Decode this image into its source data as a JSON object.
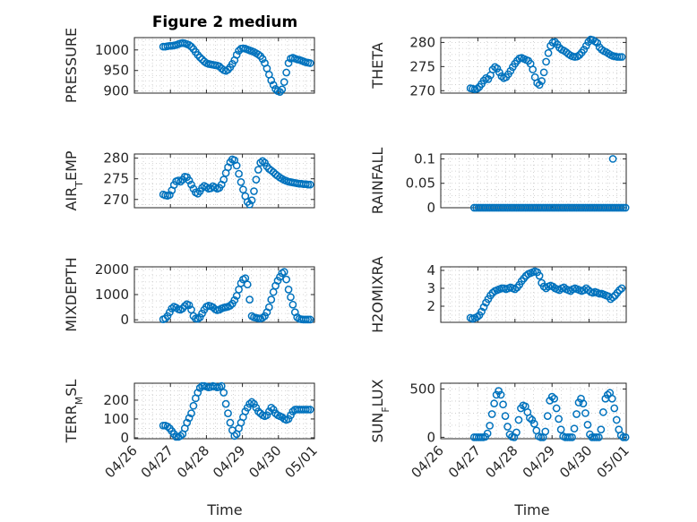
{
  "figure": {
    "title": "Figure 2 medium"
  },
  "colors": {
    "marker": "#0072BD",
    "axis": "#262626",
    "grid": "#c8c8c8",
    "background": "#ffffff"
  },
  "shared_x": {
    "label": "Time",
    "tick_labels": [
      "04/26",
      "04/27",
      "04/28",
      "04/29",
      "04/30",
      "05/01"
    ],
    "tick_values": [
      0,
      1,
      2,
      3,
      4,
      5
    ],
    "range": [
      0,
      5
    ],
    "start_date": "04/26"
  },
  "chart_data": [
    {
      "type": "scatter",
      "ylabel": "PRESSURE",
      "ylim": [
        895,
        1030
      ],
      "yticks": [
        900,
        950,
        1000
      ],
      "ytick_labels": [
        "900",
        "950",
        "1000"
      ],
      "grid": true,
      "x": [
        0.8,
        0.86,
        0.92,
        0.98,
        1.04,
        1.1,
        1.16,
        1.22,
        1.28,
        1.34,
        1.4,
        1.46,
        1.52,
        1.58,
        1.64,
        1.7,
        1.76,
        1.82,
        1.88,
        1.94,
        2.0,
        2.06,
        2.12,
        2.18,
        2.24,
        2.3,
        2.36,
        2.42,
        2.48,
        2.54,
        2.6,
        2.66,
        2.72,
        2.78,
        2.84,
        2.9,
        2.96,
        3.02,
        3.08,
        3.14,
        3.2,
        3.26,
        3.32,
        3.38,
        3.44,
        3.5,
        3.56,
        3.62,
        3.68,
        3.74,
        3.8,
        3.86,
        3.92,
        3.98,
        4.04,
        4.1,
        4.16,
        4.22,
        4.28,
        4.34,
        4.4,
        4.46,
        4.52,
        4.58,
        4.64,
        4.7,
        4.76,
        4.82,
        4.88
      ],
      "y": [
        1008,
        1008,
        1009,
        1010,
        1010,
        1011,
        1012,
        1014,
        1016,
        1017,
        1016,
        1014,
        1012,
        1008,
        1002,
        995,
        988,
        982,
        977,
        972,
        968,
        966,
        965,
        964,
        963,
        962,
        960,
        955,
        951,
        949,
        952,
        958,
        966,
        975,
        988,
        998,
        1003,
        1004,
        1003,
        1001,
        999,
        997,
        995,
        992,
        989,
        985,
        978,
        968,
        955,
        940,
        926,
        915,
        905,
        900,
        898,
        904,
        922,
        945,
        968,
        979,
        981,
        979,
        977,
        976,
        974,
        972,
        970,
        969,
        968
      ]
    },
    {
      "type": "scatter",
      "ylabel": "THETA",
      "ylim": [
        269.5,
        281
      ],
      "yticks": [
        270,
        275,
        280
      ],
      "ytick_labels": [
        "270",
        "275",
        "280"
      ],
      "grid": true,
      "x": [
        0.8,
        0.86,
        0.92,
        0.98,
        1.04,
        1.1,
        1.16,
        1.22,
        1.28,
        1.34,
        1.4,
        1.46,
        1.52,
        1.58,
        1.64,
        1.7,
        1.76,
        1.82,
        1.88,
        1.94,
        2.0,
        2.06,
        2.12,
        2.18,
        2.24,
        2.3,
        2.36,
        2.42,
        2.48,
        2.54,
        2.6,
        2.66,
        2.72,
        2.78,
        2.84,
        2.9,
        2.96,
        3.02,
        3.08,
        3.14,
        3.2,
        3.26,
        3.32,
        3.38,
        3.44,
        3.5,
        3.56,
        3.62,
        3.68,
        3.74,
        3.8,
        3.86,
        3.92,
        3.98,
        4.04,
        4.1,
        4.16,
        4.22,
        4.28,
        4.34,
        4.4,
        4.46,
        4.52,
        4.58,
        4.64,
        4.7,
        4.76,
        4.82,
        4.88
      ],
      "y": [
        270.5,
        270.4,
        270.3,
        270.4,
        270.8,
        271.4,
        272.1,
        272.6,
        272.4,
        273.2,
        274.4,
        274.9,
        274.6,
        273.8,
        273.0,
        272.6,
        272.8,
        273.4,
        274.1,
        274.9,
        275.6,
        276.2,
        276.7,
        276.8,
        276.6,
        276.4,
        276.2,
        275.6,
        274.4,
        272.8,
        271.6,
        271.2,
        272.0,
        273.8,
        276.0,
        277.8,
        279.3,
        280.0,
        280.1,
        279.6,
        278.9,
        278.5,
        278.3,
        278.0,
        277.6,
        277.3,
        277.1,
        277.0,
        277.1,
        277.4,
        277.9,
        278.5,
        279.3,
        280.1,
        280.6,
        280.5,
        280.2,
        279.9,
        279.0,
        278.5,
        278.2,
        278.0,
        277.7,
        277.4,
        277.2,
        277.1,
        277.0,
        277.0,
        277.0
      ]
    },
    {
      "type": "scatter",
      "ylabel": "AIR_TEMP",
      "ylim": [
        268,
        281
      ],
      "yticks": [
        270,
        275,
        280
      ],
      "ytick_labels": [
        "270",
        "275",
        "280"
      ],
      "grid": true,
      "x": [
        0.8,
        0.86,
        0.92,
        0.98,
        1.04,
        1.1,
        1.16,
        1.22,
        1.28,
        1.34,
        1.4,
        1.46,
        1.52,
        1.58,
        1.64,
        1.7,
        1.76,
        1.82,
        1.88,
        1.94,
        2.0,
        2.06,
        2.12,
        2.18,
        2.24,
        2.3,
        2.36,
        2.42,
        2.48,
        2.54,
        2.6,
        2.66,
        2.72,
        2.78,
        2.84,
        2.9,
        2.96,
        3.02,
        3.08,
        3.14,
        3.2,
        3.26,
        3.32,
        3.38,
        3.44,
        3.5,
        3.56,
        3.62,
        3.68,
        3.74,
        3.8,
        3.86,
        3.92,
        3.98,
        4.04,
        4.1,
        4.16,
        4.22,
        4.28,
        4.34,
        4.4,
        4.46,
        4.52,
        4.58,
        4.64,
        4.7,
        4.76,
        4.82,
        4.88
      ],
      "y": [
        271.2,
        271.0,
        270.9,
        271.1,
        272.2,
        273.5,
        274.4,
        274.6,
        274.3,
        274.8,
        275.5,
        275.4,
        274.6,
        273.6,
        272.6,
        271.7,
        271.4,
        272.0,
        272.8,
        273.3,
        273.0,
        272.6,
        272.7,
        273.2,
        272.9,
        272.6,
        272.8,
        273.6,
        274.8,
        276.4,
        277.8,
        279.0,
        279.7,
        279.5,
        278.2,
        276.2,
        274.2,
        272.4,
        270.8,
        269.4,
        268.8,
        269.8,
        272.0,
        274.8,
        277.2,
        278.9,
        279.3,
        278.9,
        278.0,
        277.4,
        277.0,
        276.6,
        276.1,
        275.7,
        275.3,
        275.0,
        274.7,
        274.5,
        274.3,
        274.2,
        274.1,
        274.0,
        273.9,
        273.8,
        273.8,
        273.7,
        273.7,
        273.6,
        273.6
      ]
    },
    {
      "type": "scatter",
      "ylabel": "RAINFALL",
      "ylim": [
        0,
        0.11
      ],
      "yticks": [
        0,
        0.05,
        0.1
      ],
      "ytick_labels": [
        "0",
        "0.05",
        "0.1"
      ],
      "grid": true,
      "x": [
        0.9,
        0.96,
        1.02,
        1.08,
        1.14,
        1.2,
        1.26,
        1.32,
        1.38,
        1.44,
        1.5,
        1.56,
        1.62,
        1.68,
        1.74,
        1.8,
        1.86,
        1.92,
        1.98,
        2.04,
        2.1,
        2.16,
        2.22,
        2.28,
        2.34,
        2.4,
        2.46,
        2.52,
        2.58,
        2.64,
        2.7,
        2.76,
        2.82,
        2.88,
        2.94,
        3.0,
        3.06,
        3.12,
        3.18,
        3.24,
        3.3,
        3.36,
        3.42,
        3.48,
        3.54,
        3.6,
        3.66,
        3.72,
        3.78,
        3.84,
        3.9,
        3.96,
        4.02,
        4.08,
        4.14,
        4.2,
        4.26,
        4.32,
        4.38,
        4.44,
        4.5,
        4.56,
        4.62,
        4.68,
        4.74,
        4.8,
        4.86,
        4.92,
        4.98,
        4.64
      ],
      "y": [
        0,
        0,
        0,
        0,
        0,
        0,
        0,
        0,
        0,
        0,
        0,
        0,
        0,
        0,
        0,
        0,
        0,
        0,
        0,
        0,
        0,
        0,
        0,
        0,
        0,
        0,
        0,
        0,
        0,
        0,
        0,
        0,
        0,
        0,
        0,
        0,
        0,
        0,
        0,
        0,
        0,
        0,
        0,
        0,
        0,
        0,
        0,
        0,
        0,
        0,
        0,
        0,
        0,
        0,
        0,
        0,
        0,
        0,
        0,
        0,
        0,
        0,
        0,
        0,
        0,
        0,
        0,
        0,
        0,
        0.1
      ]
    },
    {
      "type": "scatter",
      "ylabel": "MIXDEPTH",
      "ylim": [
        -100,
        2100
      ],
      "yticks": [
        0,
        1000,
        2000
      ],
      "ytick_labels": [
        "0",
        "1000",
        "2000"
      ],
      "grid": true,
      "x": [
        0.8,
        0.86,
        0.92,
        0.98,
        1.04,
        1.1,
        1.16,
        1.22,
        1.28,
        1.34,
        1.4,
        1.46,
        1.52,
        1.58,
        1.64,
        1.7,
        1.76,
        1.82,
        1.88,
        1.94,
        2.0,
        2.06,
        2.12,
        2.18,
        2.24,
        2.3,
        2.36,
        2.42,
        2.48,
        2.54,
        2.6,
        2.66,
        2.72,
        2.78,
        2.84,
        2.9,
        2.96,
        3.02,
        3.08,
        3.14,
        3.2,
        3.26,
        3.32,
        3.38,
        3.44,
        3.5,
        3.56,
        3.62,
        3.68,
        3.74,
        3.8,
        3.86,
        3.92,
        3.98,
        4.04,
        4.1,
        4.16,
        4.22,
        4.28,
        4.34,
        4.4,
        4.46,
        4.52,
        4.58,
        4.64,
        4.7,
        4.76,
        4.82,
        4.88
      ],
      "y": [
        20,
        50,
        150,
        300,
        450,
        520,
        480,
        420,
        400,
        450,
        550,
        620,
        580,
        400,
        150,
        50,
        40,
        100,
        250,
        400,
        520,
        560,
        540,
        500,
        420,
        380,
        400,
        450,
        480,
        500,
        520,
        560,
        640,
        780,
        950,
        1200,
        1450,
        1600,
        1650,
        1400,
        800,
        150,
        100,
        80,
        60,
        50,
        80,
        150,
        300,
        500,
        800,
        1100,
        1350,
        1550,
        1700,
        1850,
        1900,
        1600,
        1200,
        900,
        600,
        300,
        100,
        40,
        20,
        10,
        10,
        10,
        10
      ]
    },
    {
      "type": "scatter",
      "ylabel": "H2OMIXRA",
      "ylim": [
        1.1,
        4.2
      ],
      "yticks": [
        2,
        3,
        4
      ],
      "ytick_labels": [
        "2",
        "3",
        "4"
      ],
      "grid": true,
      "x": [
        0.8,
        0.86,
        0.92,
        0.98,
        1.04,
        1.1,
        1.16,
        1.22,
        1.28,
        1.34,
        1.4,
        1.46,
        1.52,
        1.58,
        1.64,
        1.7,
        1.76,
        1.82,
        1.88,
        1.94,
        2.0,
        2.06,
        2.12,
        2.18,
        2.24,
        2.3,
        2.36,
        2.42,
        2.48,
        2.54,
        2.6,
        2.66,
        2.72,
        2.78,
        2.84,
        2.9,
        2.96,
        3.02,
        3.08,
        3.14,
        3.2,
        3.26,
        3.32,
        3.38,
        3.44,
        3.5,
        3.56,
        3.62,
        3.68,
        3.74,
        3.8,
        3.86,
        3.92,
        3.98,
        4.04,
        4.1,
        4.16,
        4.22,
        4.28,
        4.34,
        4.4,
        4.46,
        4.52,
        4.58,
        4.64,
        4.7,
        4.76,
        4.82,
        4.88
      ],
      "y": [
        1.35,
        1.3,
        1.35,
        1.4,
        1.5,
        1.7,
        1.95,
        2.2,
        2.4,
        2.6,
        2.75,
        2.85,
        2.9,
        2.95,
        3.0,
        3.0,
        2.95,
        3.0,
        3.05,
        3.0,
        2.95,
        3.05,
        3.2,
        3.4,
        3.55,
        3.7,
        3.8,
        3.85,
        3.9,
        3.95,
        3.9,
        3.7,
        3.3,
        3.1,
        3.0,
        3.1,
        3.15,
        3.1,
        3.0,
        2.95,
        2.9,
        3.0,
        3.05,
        2.95,
        2.9,
        2.85,
        2.95,
        3.0,
        2.95,
        2.9,
        2.85,
        2.9,
        3.0,
        2.9,
        2.8,
        2.75,
        2.8,
        2.75,
        2.7,
        2.7,
        2.65,
        2.6,
        2.55,
        2.4,
        2.5,
        2.6,
        2.75,
        2.9,
        3.0
      ]
    },
    {
      "type": "scatter",
      "ylabel": "TERR_MSL",
      "ylim": [
        -5,
        290
      ],
      "yticks": [
        0,
        100,
        200
      ],
      "ytick_labels": [
        "0",
        "100",
        "200"
      ],
      "grid": true,
      "x": [
        0.8,
        0.86,
        0.92,
        0.98,
        1.04,
        1.1,
        1.16,
        1.22,
        1.28,
        1.34,
        1.4,
        1.46,
        1.52,
        1.58,
        1.64,
        1.7,
        1.76,
        1.82,
        1.88,
        1.94,
        2.0,
        2.06,
        2.12,
        2.18,
        2.24,
        2.3,
        2.36,
        2.42,
        2.48,
        2.54,
        2.6,
        2.66,
        2.72,
        2.78,
        2.84,
        2.9,
        2.96,
        3.02,
        3.08,
        3.14,
        3.2,
        3.26,
        3.32,
        3.38,
        3.44,
        3.5,
        3.56,
        3.62,
        3.68,
        3.74,
        3.8,
        3.86,
        3.92,
        3.98,
        4.04,
        4.1,
        4.16,
        4.22,
        4.28,
        4.34,
        4.4,
        4.46,
        4.52,
        4.58,
        4.64,
        4.7,
        4.76,
        4.82,
        4.88
      ],
      "y": [
        65,
        65,
        60,
        50,
        35,
        20,
        5,
        5,
        10,
        20,
        50,
        80,
        105,
        130,
        170,
        210,
        240,
        265,
        275,
        275,
        272,
        268,
        270,
        275,
        272,
        268,
        270,
        275,
        240,
        180,
        130,
        80,
        40,
        10,
        20,
        50,
        80,
        110,
        140,
        160,
        180,
        190,
        180,
        160,
        140,
        130,
        120,
        115,
        120,
        140,
        160,
        150,
        130,
        120,
        115,
        110,
        100,
        95,
        100,
        120,
        140,
        150,
        150,
        150,
        150,
        150,
        150,
        150,
        150
      ]
    },
    {
      "type": "scatter",
      "ylabel": "SUN_FLUX",
      "ylim": [
        -15,
        560
      ],
      "yticks": [
        0,
        500
      ],
      "ytick_labels": [
        "0",
        "500"
      ],
      "grid": true,
      "x": [
        0.9,
        0.96,
        1.02,
        1.08,
        1.14,
        1.2,
        1.26,
        1.32,
        1.38,
        1.44,
        1.5,
        1.56,
        1.62,
        1.68,
        1.74,
        1.8,
        1.86,
        1.92,
        1.98,
        2.04,
        2.1,
        2.16,
        2.22,
        2.28,
        2.34,
        2.4,
        2.46,
        2.52,
        2.58,
        2.64,
        2.7,
        2.76,
        2.82,
        2.88,
        2.94,
        3.0,
        3.06,
        3.12,
        3.18,
        3.24,
        3.3,
        3.36,
        3.42,
        3.48,
        3.54,
        3.6,
        3.66,
        3.72,
        3.78,
        3.84,
        3.9,
        3.96,
        4.02,
        4.08,
        4.14,
        4.2,
        4.26,
        4.32,
        4.38,
        4.44,
        4.5,
        4.56,
        4.62,
        4.68,
        4.74,
        4.8,
        4.86,
        4.92,
        4.98
      ],
      "y": [
        0,
        0,
        0,
        0,
        0,
        5,
        40,
        120,
        240,
        350,
        440,
        480,
        440,
        340,
        220,
        110,
        30,
        5,
        0,
        50,
        180,
        300,
        330,
        320,
        260,
        200,
        180,
        140,
        70,
        10,
        0,
        0,
        60,
        220,
        380,
        420,
        400,
        300,
        190,
        80,
        10,
        0,
        0,
        0,
        0,
        90,
        240,
        360,
        400,
        350,
        250,
        130,
        30,
        0,
        0,
        0,
        0,
        80,
        260,
        400,
        440,
        460,
        400,
        300,
        180,
        80,
        20,
        0,
        0
      ]
    }
  ]
}
